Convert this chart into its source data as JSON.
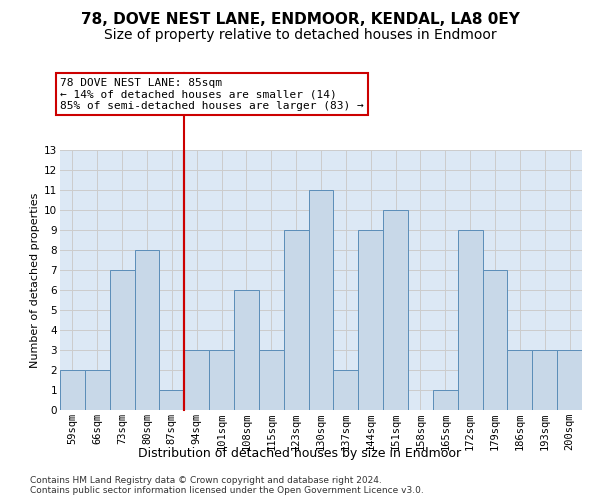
{
  "title": "78, DOVE NEST LANE, ENDMOOR, KENDAL, LA8 0EY",
  "subtitle": "Size of property relative to detached houses in Endmoor",
  "xlabel_bottom": "Distribution of detached houses by size in Endmoor",
  "ylabel": "Number of detached properties",
  "categories": [
    "59sqm",
    "66sqm",
    "73sqm",
    "80sqm",
    "87sqm",
    "94sqm",
    "101sqm",
    "108sqm",
    "115sqm",
    "123sqm",
    "130sqm",
    "137sqm",
    "144sqm",
    "151sqm",
    "158sqm",
    "165sqm",
    "172sqm",
    "179sqm",
    "186sqm",
    "193sqm",
    "200sqm"
  ],
  "values": [
    2,
    2,
    7,
    8,
    1,
    3,
    3,
    6,
    3,
    9,
    11,
    2,
    9,
    10,
    0,
    1,
    9,
    7,
    3,
    3,
    3
  ],
  "bar_color": "#c8d8e8",
  "bar_edge_color": "#5b8db8",
  "annotation_box_text": "78 DOVE NEST LANE: 85sqm\n← 14% of detached houses are smaller (14)\n85% of semi-detached houses are larger (83) →",
  "annotation_box_color": "#ffffff",
  "annotation_box_edge_color": "#cc0000",
  "annotation_line_color": "#cc0000",
  "ylim": [
    0,
    13
  ],
  "yticks": [
    0,
    1,
    2,
    3,
    4,
    5,
    6,
    7,
    8,
    9,
    10,
    11,
    12,
    13
  ],
  "grid_color": "#cccccc",
  "bg_color": "#dce8f5",
  "footer": "Contains HM Land Registry data © Crown copyright and database right 2024.\nContains public sector information licensed under the Open Government Licence v3.0.",
  "title_fontsize": 11,
  "subtitle_fontsize": 10,
  "ylabel_fontsize": 8,
  "tick_fontsize": 7.5,
  "footer_fontsize": 6.5
}
